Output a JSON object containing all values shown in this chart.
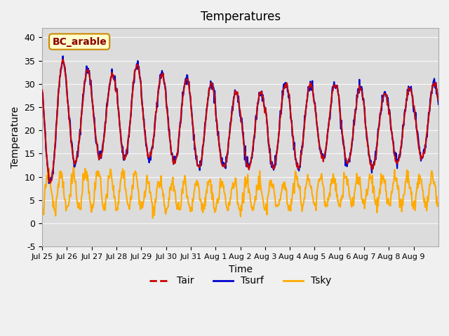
{
  "title": "Temperatures",
  "xlabel": "Time",
  "ylabel": "Temperature",
  "ylim": [
    -5,
    42
  ],
  "yticks": [
    -5,
    0,
    5,
    10,
    15,
    20,
    25,
    30,
    35,
    40
  ],
  "x_tick_labels": [
    "Jul 25",
    "Jul 26",
    "Jul 27",
    "Jul 28",
    "Jul 29",
    "Jul 30",
    "Jul 31",
    "Aug 1",
    "Aug 2",
    "Aug 3",
    "Aug 4",
    "Aug 5",
    "Aug 6",
    "Aug 7",
    "Aug 8",
    "Aug 9"
  ],
  "x_tick_positions": [
    0,
    1,
    2,
    3,
    4,
    5,
    6,
    7,
    8,
    9,
    10,
    11,
    12,
    13,
    14,
    15
  ],
  "annotation": "BC_arable",
  "fig_bg_color": "#f0f0f0",
  "plot_bg_color": "#dcdcdc",
  "tair_color": "#cc0000",
  "tsurf_color": "#0000cc",
  "tsky_color": "#ffaa00",
  "line_width": 1.5,
  "n_days": 16,
  "points_per_day": 48
}
